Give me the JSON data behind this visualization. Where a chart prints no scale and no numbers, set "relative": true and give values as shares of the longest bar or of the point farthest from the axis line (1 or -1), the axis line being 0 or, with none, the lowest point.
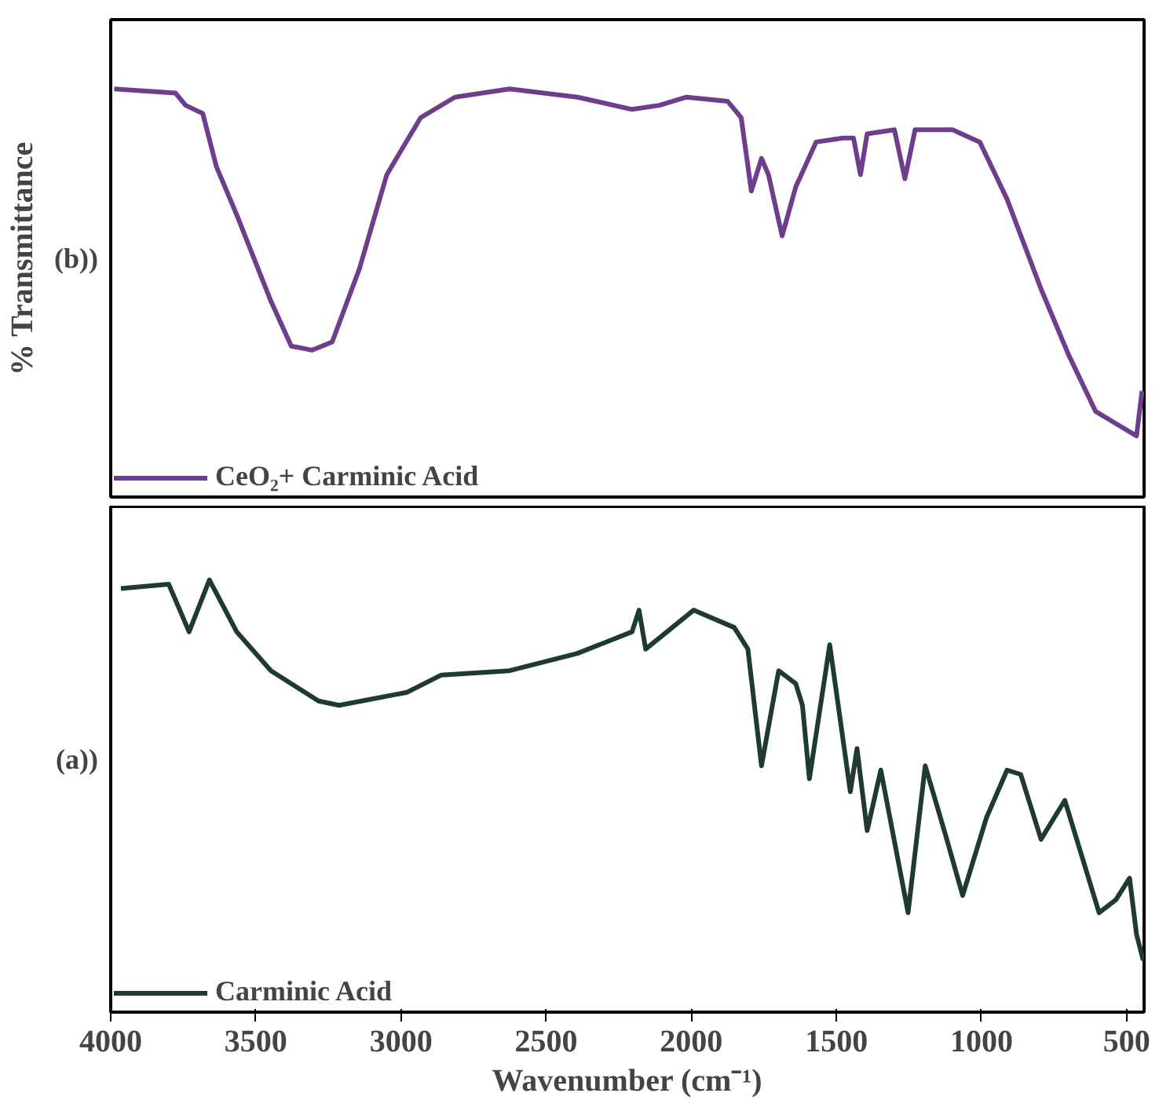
{
  "chart_data": [
    {
      "type": "line",
      "ylabel": "% Transmittance",
      "annotations": [
        "(b))"
      ],
      "relative": true,
      "legend": "bottom left",
      "tick_labels": false,
      "xlim": [
        4000,
        440
      ],
      "xticks": [
        4000,
        3500,
        3000,
        2500,
        2000,
        1500,
        1000,
        500
      ],
      "x": [
        3988,
        3777,
        3742,
        3683,
        3636,
        3565,
        3448,
        3378,
        3307,
        3237,
        3143,
        3049,
        2932,
        2814,
        2626,
        2392,
        2204,
        2110,
        2016,
        1875,
        1828,
        1793,
        1758,
        1734,
        1687,
        1640,
        1570,
        1476,
        1441,
        1417,
        1394,
        1300,
        1264,
        1229,
        1100,
        1006,
        912,
        795,
        701,
        607,
        537,
        466,
        447
      ],
      "series": [
        {
          "name": "CeO₂+ Carminic Acid",
          "color": "#6e3d8c",
          "values": [
            1.0,
            0.99,
            0.96,
            0.94,
            0.81,
            0.69,
            0.48,
            0.37,
            0.36,
            0.38,
            0.56,
            0.79,
            0.93,
            0.98,
            1.0,
            0.98,
            0.95,
            0.96,
            0.98,
            0.97,
            0.93,
            0.75,
            0.83,
            0.79,
            0.64,
            0.76,
            0.87,
            0.88,
            0.88,
            0.79,
            0.89,
            0.9,
            0.78,
            0.9,
            0.9,
            0.87,
            0.73,
            0.51,
            0.35,
            0.21,
            0.18,
            0.15,
            0.26
          ]
        }
      ]
    },
    {
      "type": "line",
      "xlabel": "Wavenumber (cm⁻¹)",
      "annotations": [
        "(a))"
      ],
      "relative": true,
      "legend": "bottom left",
      "tick_labels": "x",
      "xlim": [
        4000,
        440
      ],
      "xticks": [
        4000,
        3500,
        3000,
        2500,
        2000,
        1500,
        1000,
        500
      ],
      "x": [
        3965,
        3800,
        3730,
        3660,
        3566,
        3448,
        3284,
        3213,
        2979,
        2861,
        2626,
        2392,
        2204,
        2180,
        2157,
        1992,
        1852,
        1805,
        1758,
        1699,
        1640,
        1617,
        1593,
        1523,
        1452,
        1429,
        1394,
        1347,
        1253,
        1194,
        1124,
        1065,
        983,
        912,
        865,
        795,
        713,
        595,
        537,
        490,
        466,
        443
      ],
      "series": [
        {
          "name": "Carminic Acid",
          "color": "#1f3a30",
          "values": [
            0.98,
            0.99,
            0.88,
            1.0,
            0.88,
            0.79,
            0.72,
            0.71,
            0.74,
            0.78,
            0.79,
            0.83,
            0.88,
            0.93,
            0.84,
            0.93,
            0.89,
            0.84,
            0.57,
            0.79,
            0.76,
            0.71,
            0.54,
            0.85,
            0.51,
            0.61,
            0.42,
            0.56,
            0.23,
            0.57,
            0.41,
            0.27,
            0.45,
            0.56,
            0.55,
            0.4,
            0.49,
            0.23,
            0.26,
            0.31,
            0.18,
            0.12
          ]
        }
      ]
    }
  ]
}
